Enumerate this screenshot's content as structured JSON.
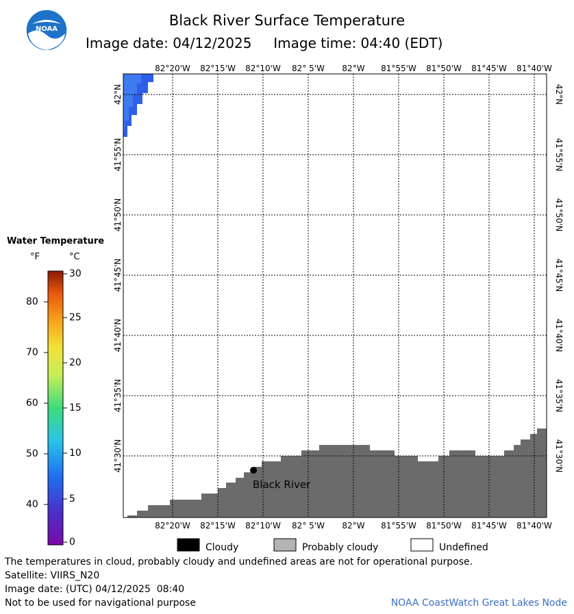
{
  "header": {
    "title": "Black River Surface Temperature",
    "subtitle_date": "Image date: 04/12/2025",
    "subtitle_time": "Image time: 04:40 (EDT)",
    "logo_text": "NOAA"
  },
  "map": {
    "lon_labels": [
      "82°20'W",
      "82°15'W",
      "82°10'W",
      "82° 5'W",
      "82°W",
      "81°55'W",
      "81°50'W",
      "81°45'W",
      "81°40'W"
    ],
    "lat_labels": [
      "42°N",
      "41°55'N",
      "41°50'N",
      "41°45'N",
      "41°40'N",
      "41°35'N",
      "41°30'N"
    ],
    "station_label": "Black River",
    "colors": {
      "land": "#6b6b6b",
      "water": "#2f5fe8",
      "water_light": "#3f7af0",
      "grid": "#000000"
    }
  },
  "legend": {
    "title": "Water Temperature",
    "unit_f": "°F",
    "unit_c": "°C",
    "f_ticks": [
      "80",
      "70",
      "60",
      "50",
      "40"
    ],
    "c_ticks": [
      "30",
      "25",
      "20",
      "15",
      "10",
      "5",
      "0"
    ]
  },
  "key": {
    "cloudy": "Cloudy",
    "probably_cloudy": "Probably cloudy",
    "undefined": "Undefined",
    "colors": {
      "cloudy": "#000000",
      "probably_cloudy": "#b4b4b4",
      "undefined": "#ffffff"
    }
  },
  "footer": {
    "note": "The temperatures in cloud, probably cloudy and undefined areas are not for operational purpose.",
    "satellite": "Satellite: VIIRS_N20",
    "utc_date": "Image date: (UTC) 04/12/2025  08:40",
    "nav_warning": "Not to be used for navigational purpose",
    "credit": "NOAA CoastWatch Great Lakes Node"
  }
}
